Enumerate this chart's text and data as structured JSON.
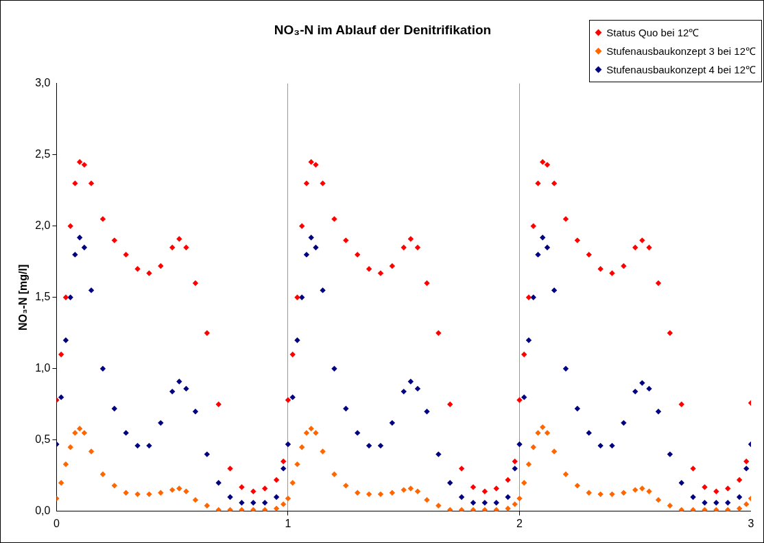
{
  "chart_data": {
    "type": "scatter",
    "title": "NO₃-N im Ablauf der Denitrifikation",
    "ylabel": "NO₃-N [mg/l]",
    "x": [
      0,
      0.02,
      0.04,
      0.06,
      0.08,
      0.1,
      0.12,
      0.15,
      0.2,
      0.25,
      0.3,
      0.35,
      0.4,
      0.45,
      0.5,
      0.53,
      0.56,
      0.6,
      0.65,
      0.7,
      0.75,
      0.8,
      0.85,
      0.9,
      0.95,
      0.98,
      1,
      1.02,
      1.04,
      1.06,
      1.08,
      1.1,
      1.12,
      1.15,
      1.2,
      1.25,
      1.3,
      1.35,
      1.4,
      1.45,
      1.5,
      1.53,
      1.56,
      1.6,
      1.65,
      1.7,
      1.75,
      1.8,
      1.85,
      1.9,
      1.95,
      1.98,
      2,
      2.02,
      2.04,
      2.06,
      2.08,
      2.1,
      2.12,
      2.15,
      2.2,
      2.25,
      2.3,
      2.35,
      2.4,
      2.45,
      2.5,
      2.53,
      2.56,
      2.6,
      2.65,
      2.7,
      2.75,
      2.8,
      2.85,
      2.9,
      2.95,
      2.98,
      3
    ],
    "series": [
      {
        "name": "Status Quo bei 12℃",
        "color": "#ff0000",
        "values": [
          0.78,
          1.1,
          1.5,
          2.0,
          2.3,
          2.45,
          2.43,
          2.3,
          2.05,
          1.9,
          1.8,
          1.7,
          1.67,
          1.72,
          1.85,
          1.91,
          1.85,
          1.6,
          1.25,
          0.75,
          0.3,
          0.17,
          0.14,
          0.16,
          0.22,
          0.35,
          0.78,
          1.1,
          1.5,
          2.0,
          2.3,
          2.45,
          2.43,
          2.3,
          2.05,
          1.9,
          1.8,
          1.7,
          1.67,
          1.72,
          1.85,
          1.91,
          1.85,
          1.6,
          1.25,
          0.75,
          0.3,
          0.17,
          0.14,
          0.16,
          0.22,
          0.35,
          0.78,
          1.1,
          1.5,
          2.0,
          2.3,
          2.45,
          2.43,
          2.3,
          2.05,
          1.9,
          1.8,
          1.7,
          1.67,
          1.72,
          1.85,
          1.9,
          1.85,
          1.6,
          1.25,
          0.75,
          0.3,
          0.17,
          0.14,
          0.16,
          0.22,
          0.35,
          0.76
        ]
      },
      {
        "name": "Stufenausbaukonzept 3 bei 12℃",
        "color": "#ff6600",
        "values": [
          0.09,
          0.2,
          0.33,
          0.45,
          0.55,
          0.58,
          0.55,
          0.42,
          0.26,
          0.18,
          0.13,
          0.12,
          0.12,
          0.13,
          0.15,
          0.16,
          0.14,
          0.08,
          0.04,
          0.01,
          0.01,
          0.01,
          0.01,
          0.01,
          0.02,
          0.05,
          0.09,
          0.2,
          0.33,
          0.45,
          0.55,
          0.58,
          0.55,
          0.42,
          0.26,
          0.18,
          0.13,
          0.12,
          0.12,
          0.13,
          0.15,
          0.16,
          0.14,
          0.08,
          0.04,
          0.01,
          0.01,
          0.01,
          0.01,
          0.01,
          0.02,
          0.05,
          0.09,
          0.2,
          0.33,
          0.45,
          0.55,
          0.59,
          0.55,
          0.42,
          0.26,
          0.18,
          0.13,
          0.12,
          0.12,
          0.13,
          0.15,
          0.16,
          0.14,
          0.08,
          0.04,
          0.01,
          0.01,
          0.01,
          0.01,
          0.01,
          0.02,
          0.05,
          0.09
        ]
      },
      {
        "name": "Stufenausbaukonzept 4 bei 12℃",
        "color": "#000080",
        "values": [
          0.47,
          0.8,
          1.2,
          1.5,
          1.8,
          1.92,
          1.85,
          1.55,
          1.0,
          0.72,
          0.55,
          0.46,
          0.46,
          0.62,
          0.84,
          0.91,
          0.86,
          0.7,
          0.4,
          0.2,
          0.1,
          0.06,
          0.06,
          0.06,
          0.1,
          0.3,
          0.47,
          0.8,
          1.2,
          1.5,
          1.8,
          1.92,
          1.85,
          1.55,
          1.0,
          0.72,
          0.55,
          0.46,
          0.46,
          0.62,
          0.84,
          0.91,
          0.86,
          0.7,
          0.4,
          0.2,
          0.1,
          0.06,
          0.06,
          0.06,
          0.1,
          0.3,
          0.47,
          0.8,
          1.2,
          1.5,
          1.8,
          1.92,
          1.85,
          1.55,
          1.0,
          0.72,
          0.55,
          0.46,
          0.46,
          0.62,
          0.84,
          0.9,
          0.86,
          0.7,
          0.4,
          0.2,
          0.1,
          0.06,
          0.06,
          0.06,
          0.1,
          0.3,
          0.47
        ]
      }
    ],
    "xlim": [
      0,
      3
    ],
    "xticks": [
      0,
      1,
      2,
      3
    ],
    "ylim": [
      0,
      3
    ],
    "yticks": [
      {
        "value": 0,
        "label": "0,0"
      },
      {
        "value": 0.5,
        "label": "0,5"
      },
      {
        "value": 1,
        "label": "1,0"
      },
      {
        "value": 1.5,
        "label": "1,5"
      },
      {
        "value": 2,
        "label": "2,0"
      },
      {
        "value": 2.5,
        "label": "2,5"
      },
      {
        "value": 3,
        "label": "3,0"
      }
    ],
    "grid": "x",
    "legend": "top right",
    "marker": "diamond"
  }
}
